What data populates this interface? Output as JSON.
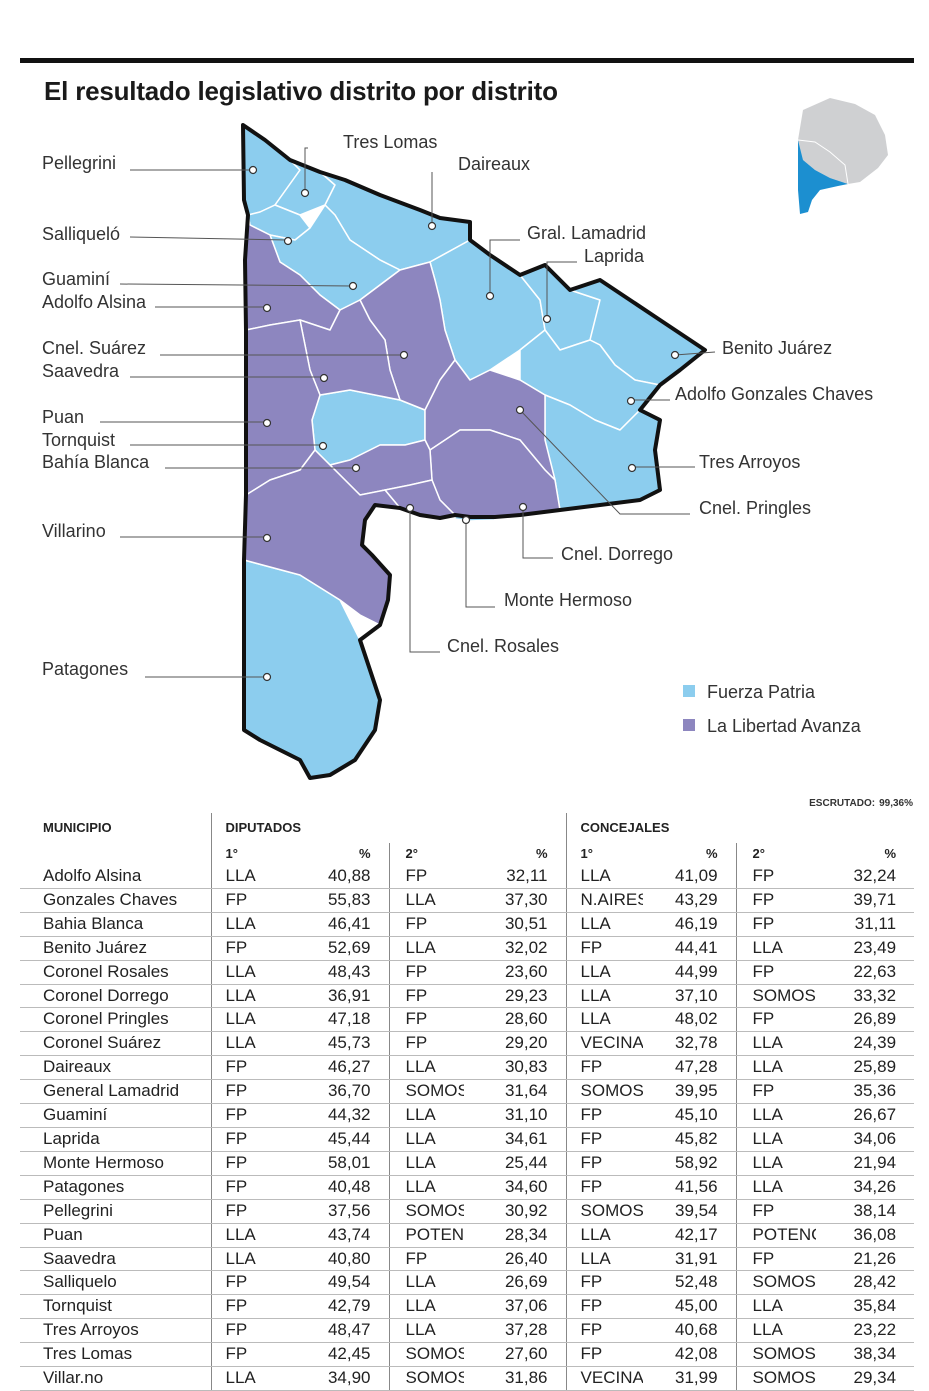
{
  "title": "El resultado legislativo distrito por distrito",
  "colors": {
    "fuerza_patria": "#8ccdee",
    "libertad_avanza": "#8d86bf",
    "province_grey": "#cfd0d2",
    "region_blue": "#1c8fd0"
  },
  "map": {
    "labels": {
      "pellegrini": "Pellegrini",
      "tres_lomas": "Tres Lomas",
      "daireaux": "Daireaux",
      "salliquelo": "Salliqueló",
      "gral_lamadrid": "Gral. Lamadrid",
      "laprida": "Laprida",
      "guamini": "Guaminí",
      "adolfo_alsina": "Adolfo Alsina",
      "cnel_suarez": "Cnel. Suárez",
      "benito_juarez": "Benito Juárez",
      "saavedra": "Saavedra",
      "adolfo_gonzales_chaves": "Adolfo Gonzales Chaves",
      "puan": "Puan",
      "tornquist": "Tornquist",
      "tres_arroyos": "Tres Arroyos",
      "bahia_blanca": "Bahía Blanca",
      "cnel_pringles": "Cnel. Pringles",
      "villarino": "Villarino",
      "cnel_dorrego": "Cnel. Dorrego",
      "monte_hermoso": "Monte Hermoso",
      "cnel_rosales": "Cnel. Rosales",
      "patagones": "Patagones"
    },
    "legend": [
      {
        "label": "Fuerza Patria",
        "color": "#8ccdee"
      },
      {
        "label": "La Libertad Avanza",
        "color": "#8d86bf"
      }
    ]
  },
  "escrutado": {
    "label": "ESCRUTADO:",
    "value": "99,36%"
  },
  "table": {
    "headers": {
      "municipio": "MUNICIPIO",
      "diputados": "DIPUTADOS",
      "concejales": "CONCEJALES"
    },
    "subheaders": {
      "first": "1°",
      "second": "2°",
      "pct": "%"
    },
    "rows": [
      {
        "municipio": "Adolfo Alsina",
        "d1": "LLA",
        "d1p": "40,88",
        "d2": "FP",
        "d2p": "32,11",
        "c1": "LLA",
        "c1p": "41,09",
        "c2": "FP",
        "c2p": "32,24"
      },
      {
        "municipio": "Gonzales Chaves",
        "d1": "FP",
        "d1p": "55,83",
        "d2": "LLA",
        "d2p": "37,30",
        "c1": "N.AIRES",
        "c1p": "43,29",
        "c2": "FP",
        "c2p": "39,71"
      },
      {
        "municipio": "Bahia Blanca",
        "d1": "LLA",
        "d1p": "46,41",
        "d2": "FP",
        "d2p": "30,51",
        "c1": "LLA",
        "c1p": "46,19",
        "c2": "FP",
        "c2p": "31,11"
      },
      {
        "municipio": "Benito Juárez",
        "d1": "FP",
        "d1p": "52,69",
        "d2": "LLA",
        "d2p": "32,02",
        "c1": "FP",
        "c1p": "44,41",
        "c2": "LLA",
        "c2p": "23,49"
      },
      {
        "municipio": "Coronel Rosales",
        "d1": "LLA",
        "d1p": "48,43",
        "d2": "FP",
        "d2p": "23,60",
        "c1": "LLA",
        "c1p": "44,99",
        "c2": "FP",
        "c2p": "22,63"
      },
      {
        "municipio": "Coronel Dorrego",
        "d1": "LLA",
        "d1p": "36,91",
        "d2": "FP",
        "d2p": "29,23",
        "c1": "LLA",
        "c1p": "37,10",
        "c2": "SOMOS",
        "c2p": "33,32"
      },
      {
        "municipio": "Coronel Pringles",
        "d1": "LLA",
        "d1p": "47,18",
        "d2": "FP",
        "d2p": "28,60",
        "c1": "LLA",
        "c1p": "48,02",
        "c2": "FP",
        "c2p": "26,89"
      },
      {
        "municipio": "Coronel Suárez",
        "d1": "LLA",
        "d1p": "45,73",
        "d2": "FP",
        "d2p": "29,20",
        "c1": "VECINAL",
        "c1p": "32,78",
        "c2": "LLA",
        "c2p": "24,39"
      },
      {
        "municipio": "Daireaux",
        "d1": "FP",
        "d1p": "46,27",
        "d2": "LLA",
        "d2p": "30,83",
        "c1": "FP",
        "c1p": "47,28",
        "c2": "LLA",
        "c2p": "25,89"
      },
      {
        "municipio": "General Lamadrid",
        "d1": "FP",
        "d1p": "36,70",
        "d2": "SOMOS",
        "d2p": "31,64",
        "c1": "SOMOS",
        "c1p": "39,95",
        "c2": "FP",
        "c2p": "35,36"
      },
      {
        "municipio": "Guaminí",
        "d1": "FP",
        "d1p": "44,32",
        "d2": "LLA",
        "d2p": "31,10",
        "c1": "FP",
        "c1p": "45,10",
        "c2": "LLA",
        "c2p": "26,67"
      },
      {
        "municipio": "Laprida",
        "d1": "FP",
        "d1p": "45,44",
        "d2": "LLA",
        "d2p": "34,61",
        "c1": "FP",
        "c1p": "45,82",
        "c2": "LLA",
        "c2p": "34,06"
      },
      {
        "municipio": "Monte Hermoso",
        "d1": "FP",
        "d1p": "58,01",
        "d2": "LLA",
        "d2p": "25,44",
        "c1": "FP",
        "c1p": "58,92",
        "c2": "LLA",
        "c2p": "21,94"
      },
      {
        "municipio": "Patagones",
        "d1": "FP",
        "d1p": "40,48",
        "d2": "LLA",
        "d2p": "34,60",
        "c1": "FP",
        "c1p": "41,56",
        "c2": "LLA",
        "c2p": "34,26"
      },
      {
        "municipio": "Pellegrini",
        "d1": "FP",
        "d1p": "37,56",
        "d2": "SOMOS",
        "d2p": "30,92",
        "c1": "SOMOS",
        "c1p": "39,54",
        "c2": "FP",
        "c2p": "38,14"
      },
      {
        "municipio": "Puan",
        "d1": "LLA",
        "d1p": "43,74",
        "d2": "POTENCIA",
        "d2p": "28,34",
        "c1": "LLA",
        "c1p": "42,17",
        "c2": "POTENCIA",
        "c2p": "36,08"
      },
      {
        "municipio": "Saavedra",
        "d1": "LLA",
        "d1p": "40,80",
        "d2": "FP",
        "d2p": "26,40",
        "c1": "LLA",
        "c1p": "31,91",
        "c2": "FP",
        "c2p": "21,26"
      },
      {
        "municipio": "Salliquelo",
        "d1": "FP",
        "d1p": "49,54",
        "d2": "LLA",
        "d2p": "26,69",
        "c1": "FP",
        "c1p": "52,48",
        "c2": "SOMOS",
        "c2p": "28,42"
      },
      {
        "municipio": "Tornquist",
        "d1": "FP",
        "d1p": "42,79",
        "d2": "LLA",
        "d2p": "37,06",
        "c1": "FP",
        "c1p": "45,00",
        "c2": "LLA",
        "c2p": "35,84"
      },
      {
        "municipio": "Tres Arroyos",
        "d1": "FP",
        "d1p": "48,47",
        "d2": "LLA",
        "d2p": "37,28",
        "c1": "FP",
        "c1p": "40,68",
        "c2": "LLA",
        "c2p": "23,22"
      },
      {
        "municipio": "Tres Lomas",
        "d1": "FP",
        "d1p": "42,45",
        "d2": "SOMOS",
        "d2p": "27,60",
        "c1": "FP",
        "c1p": "42,08",
        "c2": "SOMOS",
        "c2p": "38,34"
      },
      {
        "municipio": "Villar.no",
        "d1": "LLA",
        "d1p": "34,90",
        "d2": "SOMOS",
        "d2p": "31,86",
        "c1": "VECINAL",
        "c1p": "31,99",
        "c2": "SOMOS",
        "c2p": "29,34"
      }
    ]
  }
}
